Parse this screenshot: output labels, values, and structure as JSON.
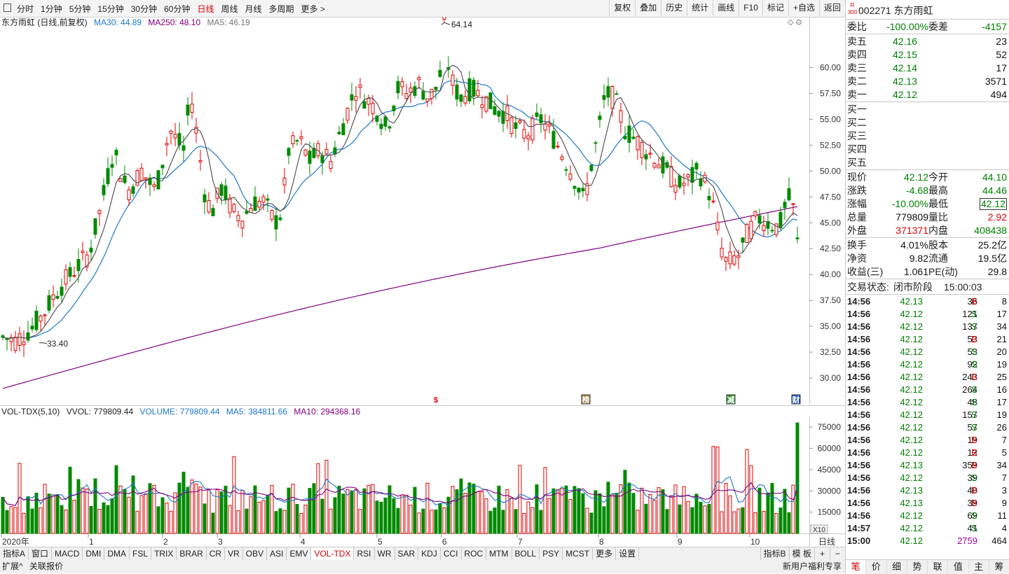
{
  "toolbar": {
    "periods": [
      "分时",
      "1分钟",
      "5分钟",
      "15分钟",
      "30分钟",
      "60分钟",
      "日线",
      "周线",
      "月线",
      "多周期",
      "更多 >"
    ],
    "active_period": "日线",
    "tools": [
      "复权",
      "叠加",
      "历史",
      "统计",
      "画线",
      "F10",
      "标记",
      "+自选",
      "返回"
    ]
  },
  "chart": {
    "stock_title": "东方雨虹 (日线,前复权)",
    "ma30_label": "MA30: 44.89",
    "ma250_label": "MA250: 48.10",
    "ma5_label": "MA5: 46.19",
    "high_label": "64.14",
    "low_label": "33.40",
    "y_ticks": [
      "60.00",
      "57.50",
      "55.00",
      "52.50",
      "50.00",
      "47.50",
      "45.00",
      "42.50",
      "40.00",
      "37.50",
      "35.00",
      "32.50",
      "30.00"
    ],
    "markers": [
      "$",
      "榜",
      "减",
      "财"
    ],
    "colors": {
      "up": "#e00000",
      "down": "#008a00",
      "ma5": "#555555",
      "ma30": "#1f78c8",
      "ma250": "#800080"
    }
  },
  "volume": {
    "title": "VOL-TDX(5,10)",
    "vvol_label": "VVOL: 779809.44",
    "volume_label": "VOLUME: 779809.44",
    "ma5_label": "MA5: 384811.66",
    "ma10_label": "MA10: 294368.16",
    "y_ticks": [
      "75000",
      "60000",
      "45000",
      "30000",
      "15000"
    ],
    "unit": "X10"
  },
  "x_axis": {
    "labels": [
      "2020年",
      "1",
      "2",
      "3",
      "4",
      "5",
      "6",
      "7",
      "8",
      "9",
      "10"
    ],
    "period": "日线"
  },
  "indicator_tabs": [
    "指标A",
    "窗口",
    "MACD",
    "DMI",
    "DMA",
    "FSL",
    "TRIX",
    "BRAR",
    "CR",
    "VR",
    "OBV",
    "ASI",
    "EMV",
    "VOL-TDX",
    "RSI",
    "WR",
    "SAR",
    "KDJ",
    "CCI",
    "ROC",
    "MTM",
    "BOLL",
    "PSY",
    "MCST",
    "更多",
    "设置"
  ],
  "active_indicator": "VOL-TDX",
  "indicator_right": [
    "指标B",
    "模 板"
  ],
  "zoom_buttons": [
    "+",
    "−"
  ],
  "status_left": [
    "扩展^",
    "关联报价"
  ],
  "status_right": "新用户福利专享",
  "quote": {
    "badge_top": "R",
    "badge_bottom": "300",
    "code": "002271",
    "name": "东方雨虹",
    "webi_label": "委比",
    "webi_value": "-100.00%",
    "weicha_label": "委差",
    "weicha_value": "-4157",
    "asks": [
      {
        "label": "卖五",
        "price": "42.16",
        "vol": "23"
      },
      {
        "label": "卖四",
        "price": "42.15",
        "vol": "52"
      },
      {
        "label": "卖三",
        "price": "42.14",
        "vol": "17"
      },
      {
        "label": "卖二",
        "price": "42.13",
        "vol": "3571"
      },
      {
        "label": "卖一",
        "price": "42.12",
        "vol": "494"
      }
    ],
    "bids": [
      "买一",
      "买二",
      "买三",
      "买四",
      "买五"
    ],
    "stats": [
      {
        "l1": "现价",
        "v1": "42.12",
        "c1": "g",
        "l2": "今开",
        "v2": "44.10",
        "c2": "g"
      },
      {
        "l1": "涨跌",
        "v1": "-4.68",
        "c1": "g",
        "l2": "最高",
        "v2": "44.46",
        "c2": "g"
      },
      {
        "l1": "涨幅",
        "v1": "-10.00%",
        "c1": "g",
        "l2": "最低",
        "v2": "42.12",
        "c2": "g"
      },
      {
        "l1": "总量",
        "v1": "779809",
        "c1": "k",
        "l2": "量比",
        "v2": "2.92",
        "c2": "r"
      },
      {
        "l1": "外盘",
        "v1": "371371",
        "c1": "r",
        "l2": "内盘",
        "v2": "408438",
        "c2": "g"
      }
    ],
    "stats2": [
      {
        "l1": "换手",
        "v1": "4.01%",
        "l2": "股本",
        "v2": "25.2亿"
      },
      {
        "l1": "净资",
        "v1": "9.82",
        "l2": "流通",
        "v2": "19.5亿"
      },
      {
        "l1": "收益(三)",
        "v1": "1.061",
        "l2": "PE(动)",
        "v2": "29.8"
      }
    ],
    "trade_state_label": "交易状态:",
    "trade_state_value": "闭市阶段",
    "trade_state_time": "15:00:03"
  },
  "ticks": [
    {
      "time": "14:56",
      "price": "42.13",
      "vol": "36",
      "bs": "B",
      "n": "8"
    },
    {
      "time": "14:56",
      "price": "42.12",
      "vol": "121",
      "bs": "S",
      "n": "17"
    },
    {
      "time": "14:56",
      "price": "42.12",
      "vol": "137",
      "bs": "S",
      "n": "34"
    },
    {
      "time": "14:56",
      "price": "42.12",
      "vol": "53",
      "bs": "B",
      "n": "21"
    },
    {
      "time": "14:56",
      "price": "42.12",
      "vol": "53",
      "bs": "S",
      "n": "20"
    },
    {
      "time": "14:56",
      "price": "42.12",
      "vol": "92",
      "bs": "S",
      "n": "19"
    },
    {
      "time": "14:56",
      "price": "42.12",
      "vol": "243",
      "bs": "B",
      "n": "25"
    },
    {
      "time": "14:56",
      "price": "42.12",
      "vol": "264",
      "bs": "S",
      "n": "16"
    },
    {
      "time": "14:56",
      "price": "42.12",
      "vol": "48",
      "bs": "S",
      "n": "17"
    },
    {
      "time": "14:56",
      "price": "42.12",
      "vol": "157",
      "bs": "S",
      "n": "19"
    },
    {
      "time": "14:56",
      "price": "42.12",
      "vol": "57",
      "bs": "S",
      "n": "26"
    },
    {
      "time": "14:56",
      "price": "42.12",
      "vol": "19",
      "bs": "B",
      "n": "7"
    },
    {
      "time": "14:56",
      "price": "42.12",
      "vol": "12",
      "bs": "B",
      "n": "5"
    },
    {
      "time": "14:56",
      "price": "42.13",
      "vol": "359",
      "bs": "B",
      "n": "34"
    },
    {
      "time": "14:56",
      "price": "42.12",
      "vol": "39",
      "bs": "S",
      "n": "7"
    },
    {
      "time": "14:56",
      "price": "42.13",
      "vol": "40",
      "bs": "B",
      "n": "3"
    },
    {
      "time": "14:56",
      "price": "42.13",
      "vol": "39",
      "bs": "B",
      "n": "9"
    },
    {
      "time": "14:56",
      "price": "42.12",
      "vol": "69",
      "bs": "S",
      "n": "11"
    },
    {
      "time": "14:57",
      "price": "42.12",
      "vol": "41",
      "bs": "S",
      "n": "4"
    },
    {
      "time": "15:00",
      "price": "42.12",
      "vol": "2759",
      "bs": "",
      "n": "464"
    }
  ],
  "right_tabs": [
    "笔",
    "价",
    "细",
    "势",
    "联",
    "值",
    "主",
    "筹"
  ],
  "active_right_tab": "笔"
}
